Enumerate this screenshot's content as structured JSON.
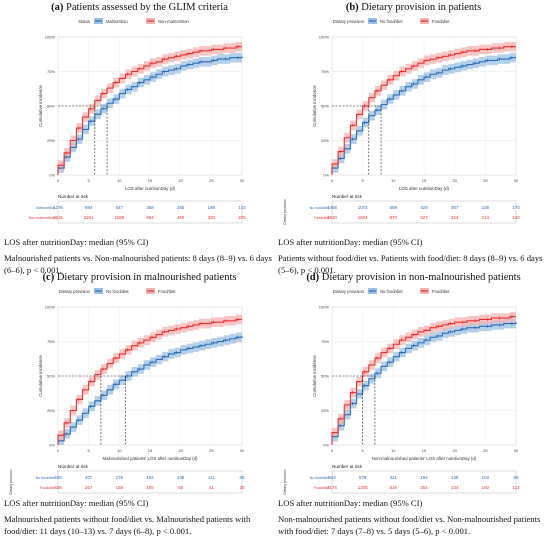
{
  "colors": {
    "no": "#2a6db5",
    "yes": "#e8312f",
    "no_band": "#9cc0e2",
    "yes_band": "#f6b2b2"
  },
  "panels": [
    {
      "label": "(a)",
      "title": "Patients assessed by the GLIM criteria",
      "legend_title": "Status",
      "legend": [
        "Malnutrition",
        "Non-malnutrition"
      ],
      "ylabel": "Cumulative incidence",
      "xlabel": "LOS after nutritionDay (d)",
      "risk_title": "Number at risk",
      "risk_side": "",
      "risk_rows": [
        {
          "label": "Malnutrition",
          "values": [
            "1276",
            "884",
            "547",
            "368",
            "255",
            "189",
            "143"
          ]
        },
        {
          "label": "Non-malnutrition",
          "values": [
            "3615",
            "2261",
            "1188",
            "694",
            "460",
            "320",
            "225"
          ]
        }
      ],
      "text1": "LOS after nutritionDay: median (95% CI)",
      "text2": "Malnourished patients vs. Non-malnourished patients: 8 days (8–9) vs. 6 days (6–6), p < 0.001."
    },
    {
      "label": "(b)",
      "title": "Dietary provision in patients",
      "legend_title": "Dietary provision",
      "legend": [
        "No food/diet",
        "Food/diet"
      ],
      "ylabel": "Cumulative incidence",
      "xlabel": "LOS after nutritionDay (d)",
      "risk_title": "Number at risk",
      "risk_side": "Dietary provision",
      "risk_rows": [
        {
          "label": "No food/diet",
          "values": [
            "1468",
            "1074",
            "659",
            "429",
            "307",
            "238",
            "170"
          ]
        },
        {
          "label": "Food/diet",
          "values": [
            "2910",
            "1604",
            "870",
            "527",
            "324",
            "214",
            "140"
          ]
        }
      ],
      "text1": "LOS after nutritionDay: median (95% CI)",
      "text2": "Patients without food/diet vs. Patients with food/diet: 8 days (8–9) vs. 6 days (5–6), p < 0.001."
    },
    {
      "label": "(c)",
      "title": "Dietary provision in malnourished patients",
      "legend_title": "Dietary provision",
      "legend": [
        "No food/diet",
        "Food/diet"
      ],
      "ylabel": "Cumulative incidence",
      "xlabel": "Malnourished patients' LOS after nutritionDay (d)",
      "risk_title": "Number at risk",
      "risk_side": "Dietary provision",
      "risk_rows": [
        {
          "label": "No food/diet",
          "values": [
            "536",
            "407",
            "279",
            "192",
            "139",
            "111",
            "85"
          ]
        },
        {
          "label": "Food/diet",
          "values": [
            "436",
            "267",
            "159",
            "105",
            "65",
            "41",
            "30"
          ]
        }
      ],
      "text1": "LOS after nutritionDay: median (95% CI)",
      "text2": "Malnourished patients without food/diet vs. Malnourished patients with food/diet: 11 days (10–13) vs. 7 days (6–8), p < 0.001."
    },
    {
      "label": "(d)",
      "title": "Dietary provision in non-malnourished patients",
      "legend_title": "Dietary provision",
      "legend": [
        "No food/diet",
        "Food/diet"
      ],
      "ylabel": "Cumulative incidence",
      "xlabel": "Non-malnourished patients' LOS after nutritionDay (d)",
      "risk_title": "Number at risk",
      "risk_side": "Dietary provision",
      "risk_rows": [
        {
          "label": "No food/diet",
          "values": [
            "843",
            "578",
            "321",
            "194",
            "138",
            "103",
            "69"
          ]
        },
        {
          "label": "Food/diet",
          "values": [
            "2174",
            "1205",
            "616",
            "364",
            "234",
            "160",
            "113"
          ]
        }
      ],
      "text1": "LOS after nutritionDay: median (95% CI)",
      "text2": "Non-malnourished patients without food/diet vs. Non-malnourished patients with food/diet: 7 days (7–8) vs. 5 days (5–6), p < 0.001."
    }
  ],
  "chart_data": [
    {
      "type": "line",
      "title": "Patients assessed by the GLIM criteria",
      "xlabel": "LOS after nutritionDay (d)",
      "ylabel": "Cumulative incidence",
      "xlim": [
        0,
        30
      ],
      "ylim": [
        0,
        1
      ],
      "x_ticks": [
        0,
        5,
        10,
        15,
        20,
        25,
        30
      ],
      "y_ticks": [
        "0%",
        "25%",
        "50%",
        "75%",
        "100%"
      ],
      "median_markers": [
        8,
        6
      ],
      "x": [
        0,
        1,
        2,
        3,
        4,
        5,
        6,
        7,
        8,
        9,
        10,
        11,
        12,
        13,
        14,
        15,
        16,
        17,
        18,
        19,
        20,
        21,
        22,
        23,
        24,
        25,
        26,
        27,
        28,
        29,
        30
      ],
      "series": [
        {
          "name": "Malnutrition",
          "values": [
            0.05,
            0.13,
            0.2,
            0.26,
            0.33,
            0.39,
            0.44,
            0.48,
            0.52,
            0.55,
            0.59,
            0.62,
            0.64,
            0.67,
            0.69,
            0.71,
            0.73,
            0.75,
            0.76,
            0.77,
            0.79,
            0.8,
            0.81,
            0.82,
            0.82,
            0.83,
            0.84,
            0.84,
            0.85,
            0.85,
            0.86
          ]
        },
        {
          "name": "Non-malnutrition",
          "values": [
            0.07,
            0.16,
            0.25,
            0.34,
            0.42,
            0.48,
            0.54,
            0.59,
            0.63,
            0.67,
            0.7,
            0.73,
            0.75,
            0.77,
            0.79,
            0.81,
            0.82,
            0.84,
            0.85,
            0.86,
            0.87,
            0.88,
            0.89,
            0.9,
            0.9,
            0.91,
            0.91,
            0.92,
            0.92,
            0.93,
            0.93
          ]
        }
      ]
    },
    {
      "type": "line",
      "title": "Dietary provision in patients",
      "xlabel": "LOS after nutritionDay (d)",
      "ylabel": "Cumulative incidence",
      "xlim": [
        0,
        30
      ],
      "ylim": [
        0,
        1
      ],
      "x_ticks": [
        0,
        5,
        10,
        15,
        20,
        25,
        30
      ],
      "y_ticks": [
        "0%",
        "25%",
        "50%",
        "75%",
        "100%"
      ],
      "median_markers": [
        8,
        6
      ],
      "x": [
        0,
        1,
        2,
        3,
        4,
        5,
        6,
        7,
        8,
        9,
        10,
        11,
        12,
        13,
        14,
        15,
        16,
        17,
        18,
        19,
        20,
        21,
        22,
        23,
        24,
        25,
        26,
        27,
        28,
        29,
        30
      ],
      "series": [
        {
          "name": "No food/diet",
          "values": [
            0.05,
            0.12,
            0.19,
            0.26,
            0.32,
            0.38,
            0.43,
            0.47,
            0.51,
            0.55,
            0.58,
            0.61,
            0.64,
            0.66,
            0.69,
            0.71,
            0.73,
            0.74,
            0.76,
            0.77,
            0.78,
            0.79,
            0.8,
            0.81,
            0.82,
            0.83,
            0.83,
            0.84,
            0.84,
            0.85,
            0.85
          ]
        },
        {
          "name": "Food/diet",
          "values": [
            0.08,
            0.17,
            0.27,
            0.36,
            0.44,
            0.5,
            0.56,
            0.61,
            0.65,
            0.69,
            0.72,
            0.75,
            0.77,
            0.79,
            0.81,
            0.83,
            0.84,
            0.85,
            0.86,
            0.87,
            0.88,
            0.89,
            0.9,
            0.9,
            0.91,
            0.91,
            0.92,
            0.92,
            0.93,
            0.93,
            0.93
          ]
        }
      ]
    },
    {
      "type": "line",
      "title": "Dietary provision in malnourished patients",
      "xlabel": "Malnourished patients' LOS after nutritionDay (d)",
      "ylabel": "Cumulative incidence",
      "xlim": [
        0,
        30
      ],
      "ylim": [
        0,
        1
      ],
      "x_ticks": [
        0,
        5,
        10,
        15,
        20,
        25,
        30
      ],
      "y_ticks": [
        "0%",
        "25%",
        "50%",
        "75%",
        "100%"
      ],
      "median_markers": [
        11,
        7
      ],
      "x": [
        0,
        1,
        2,
        3,
        4,
        5,
        6,
        7,
        8,
        9,
        10,
        11,
        12,
        13,
        14,
        15,
        16,
        17,
        18,
        19,
        20,
        21,
        22,
        23,
        24,
        25,
        26,
        27,
        28,
        29,
        30
      ],
      "series": [
        {
          "name": "No food/diet",
          "values": [
            0.03,
            0.08,
            0.13,
            0.18,
            0.23,
            0.28,
            0.32,
            0.36,
            0.4,
            0.44,
            0.47,
            0.5,
            0.53,
            0.55,
            0.58,
            0.6,
            0.62,
            0.64,
            0.66,
            0.67,
            0.69,
            0.7,
            0.71,
            0.72,
            0.73,
            0.74,
            0.75,
            0.76,
            0.77,
            0.78,
            0.79
          ]
        },
        {
          "name": "Food/diet",
          "values": [
            0.07,
            0.16,
            0.25,
            0.33,
            0.4,
            0.46,
            0.51,
            0.55,
            0.59,
            0.63,
            0.66,
            0.69,
            0.72,
            0.74,
            0.76,
            0.78,
            0.8,
            0.82,
            0.83,
            0.84,
            0.85,
            0.86,
            0.87,
            0.88,
            0.88,
            0.89,
            0.89,
            0.9,
            0.9,
            0.91,
            0.91
          ]
        }
      ]
    },
    {
      "type": "line",
      "title": "Dietary provision in non-malnourished patients",
      "xlabel": "Non-malnourished patients' LOS after nutritionDay (d)",
      "ylabel": "Cumulative incidence",
      "xlim": [
        0,
        30
      ],
      "ylim": [
        0,
        1
      ],
      "x_ticks": [
        0,
        5,
        10,
        15,
        20,
        25,
        30
      ],
      "y_ticks": [
        "0%",
        "25%",
        "50%",
        "75%",
        "100%"
      ],
      "median_markers": [
        7,
        5
      ],
      "x": [
        0,
        1,
        2,
        3,
        4,
        5,
        6,
        7,
        8,
        9,
        10,
        11,
        12,
        13,
        14,
        15,
        16,
        17,
        18,
        19,
        20,
        21,
        22,
        23,
        24,
        25,
        26,
        27,
        28,
        29,
        30
      ],
      "series": [
        {
          "name": "No food/diet",
          "values": [
            0.06,
            0.14,
            0.22,
            0.3,
            0.37,
            0.43,
            0.48,
            0.52,
            0.57,
            0.6,
            0.64,
            0.67,
            0.7,
            0.72,
            0.74,
            0.76,
            0.78,
            0.79,
            0.81,
            0.82,
            0.83,
            0.84,
            0.85,
            0.85,
            0.86,
            0.86,
            0.87,
            0.87,
            0.88,
            0.88,
            0.89
          ]
        },
        {
          "name": "Food/diet",
          "values": [
            0.09,
            0.19,
            0.29,
            0.38,
            0.46,
            0.53,
            0.58,
            0.63,
            0.67,
            0.7,
            0.73,
            0.76,
            0.78,
            0.8,
            0.82,
            0.83,
            0.85,
            0.86,
            0.87,
            0.88,
            0.89,
            0.89,
            0.9,
            0.9,
            0.91,
            0.91,
            0.92,
            0.92,
            0.92,
            0.93,
            0.93
          ]
        }
      ]
    }
  ]
}
